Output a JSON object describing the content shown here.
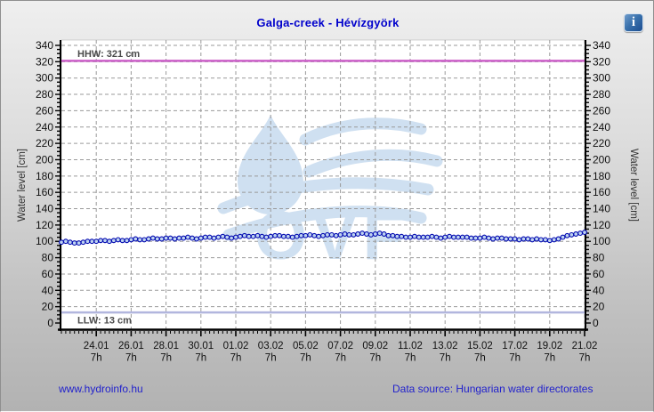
{
  "title": "Galga-creek - Hévízgyörk",
  "info_icon": "i",
  "watermark_text": "OVF",
  "footer": {
    "left_link": "www.hydroinfo.hu",
    "right_text": "Data source: Hungarian water directorates"
  },
  "colors": {
    "title": "#0000cc",
    "grid": "#9a9a9a",
    "axis": "#000000",
    "tick_label": "#111111",
    "axis_title": "#333333",
    "hhw_line": "#cb5fc8",
    "llw_line": "#b2b6de",
    "ref_label": "#4a4a4a",
    "series_line": "#0008b0",
    "marker_fill": "#bed3f0",
    "watermark": "#cfe0f1",
    "link": "#2222cc",
    "plot_bg": "#ffffff"
  },
  "chart_data": {
    "type": "line",
    "title": "Galga-creek - Hévízgyörk",
    "ylabel_left": "Water level [cm]",
    "ylabel_right": "Water level [cm]",
    "ylim": [
      0,
      340
    ],
    "ytick_step": 20,
    "ytick_minor_step": 5,
    "grid": true,
    "x_days_range": 30,
    "x_major_tick_days": [
      2,
      4,
      6,
      8,
      10,
      12,
      14,
      16,
      18,
      20,
      22,
      24,
      26,
      28,
      30
    ],
    "x_tick_labels": [
      "24.01",
      "26.01",
      "28.01",
      "30.01",
      "01.02",
      "03.02",
      "05.02",
      "07.02",
      "09.02",
      "11.02",
      "13.02",
      "15.02",
      "17.02",
      "19.02",
      "21.02"
    ],
    "x_tick_sublabel": "7h",
    "x_minor_tick_interval_days": 0.25,
    "reference_lines": [
      {
        "name": "HHW",
        "label": "HHW: 321 cm",
        "value": 321
      },
      {
        "name": "LLW",
        "label": "LLW: 13 cm",
        "value": 13
      }
    ],
    "series": [
      {
        "name": "water-level",
        "interval_days": 0.25,
        "start_day": 0,
        "values": [
          99,
          100,
          99,
          98,
          98,
          99,
          100,
          100,
          100,
          101,
          101,
          100,
          101,
          102,
          101,
          101,
          102,
          103,
          102,
          102,
          103,
          104,
          103,
          103,
          104,
          104,
          103,
          104,
          104,
          105,
          104,
          103,
          104,
          105,
          105,
          104,
          105,
          106,
          105,
          104,
          105,
          106,
          107,
          106,
          106,
          107,
          106,
          105,
          106,
          107,
          107,
          106,
          106,
          105,
          106,
          107,
          107,
          108,
          107,
          106,
          107,
          108,
          108,
          107,
          108,
          109,
          108,
          108,
          109,
          110,
          109,
          108,
          109,
          110,
          109,
          107,
          107,
          106,
          106,
          105,
          105,
          106,
          105,
          105,
          105,
          106,
          105,
          104,
          105,
          106,
          105,
          105,
          105,
          105,
          104,
          104,
          104,
          105,
          104,
          103,
          104,
          104,
          103,
          103,
          103,
          102,
          103,
          103,
          102,
          103,
          102,
          102,
          101,
          102,
          103,
          105,
          107,
          108,
          109,
          110,
          111
        ]
      }
    ]
  }
}
